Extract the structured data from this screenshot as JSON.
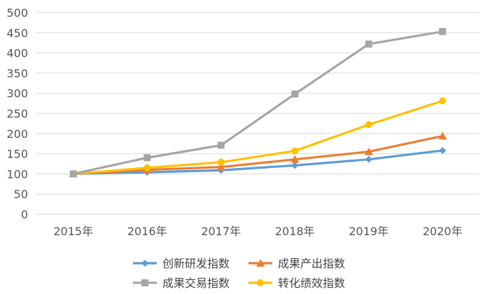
{
  "chart_data": {
    "type": "line",
    "title": "",
    "xlabel": "",
    "ylabel": "",
    "categories": [
      "2015年",
      "2016年",
      "2017年",
      "2018年",
      "2019年",
      "2020年"
    ],
    "y_ticks": [
      0,
      50,
      100,
      150,
      200,
      250,
      300,
      350,
      400,
      450,
      500
    ],
    "ylim": [
      0,
      500
    ],
    "grid": true,
    "legend_position": "bottom",
    "series": [
      {
        "name": "创新研发指数",
        "color": "#5b9bd5",
        "marker": "diamond",
        "values": [
          100,
          104,
          109,
          121,
          136,
          158
        ]
      },
      {
        "name": "成果产出指数",
        "color": "#ed7d31",
        "marker": "triangle",
        "values": [
          100,
          110,
          117,
          136,
          155,
          194
        ]
      },
      {
        "name": "成果交易指数",
        "color": "#a5a5a5",
        "marker": "square",
        "values": [
          100,
          140,
          171,
          298,
          422,
          453
        ]
      },
      {
        "name": "转化绩效指数",
        "color": "#ffc000",
        "marker": "circle",
        "values": [
          100,
          115,
          129,
          157,
          222,
          281
        ]
      }
    ]
  }
}
